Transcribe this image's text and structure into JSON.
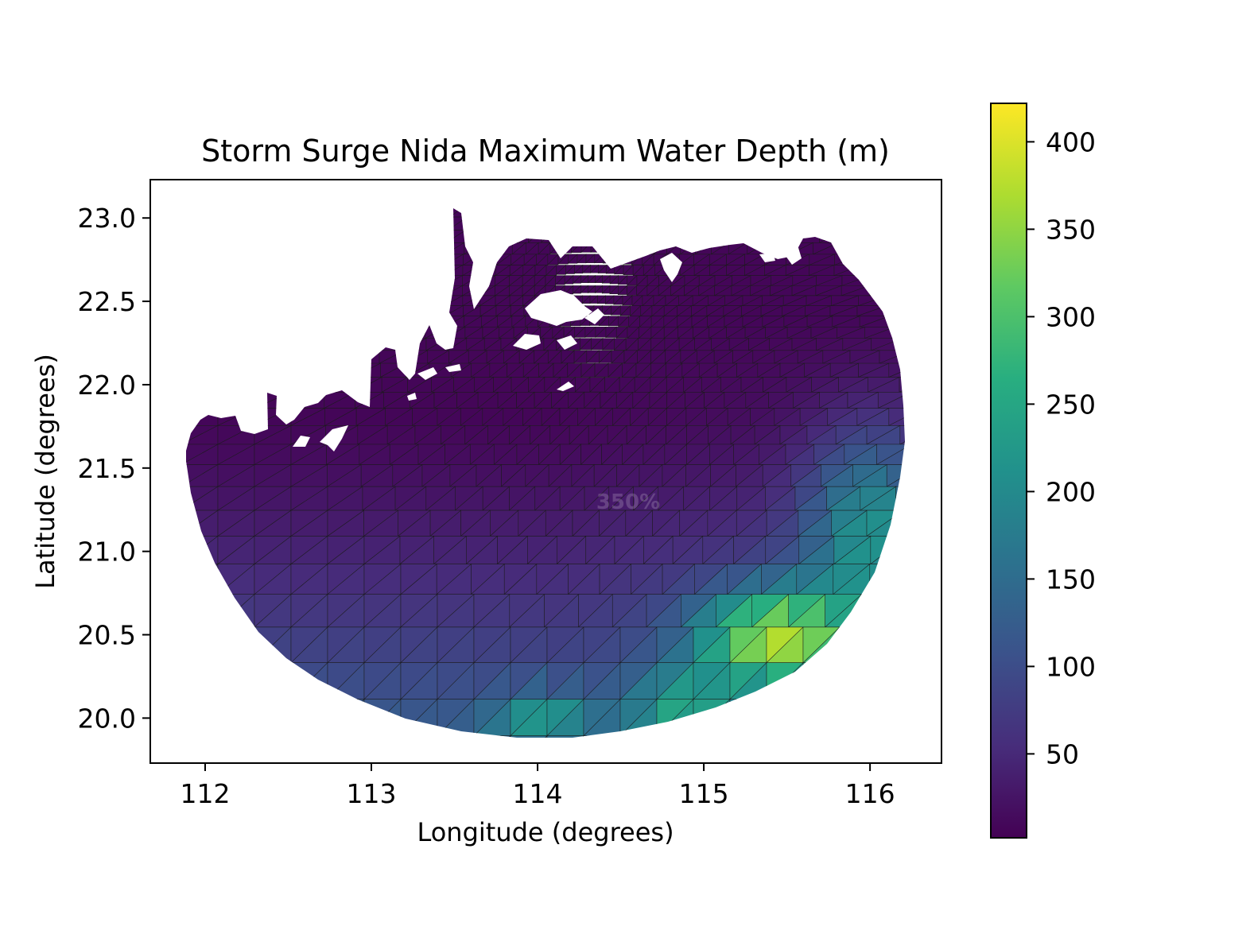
{
  "chart_data": {
    "type": "heatmap",
    "title": "Storm Surge Nida Maximum Water Depth (m)",
    "xlabel": "Longitude (degrees)",
    "ylabel": "Latitude (degrees)",
    "xlim": [
      111.67,
      116.43
    ],
    "ylim": [
      19.73,
      23.23
    ],
    "x_ticks": [
      112,
      113,
      114,
      115,
      116
    ],
    "y_ticks": [
      20.0,
      20.5,
      21.0,
      21.5,
      22.0,
      22.5,
      23.0
    ],
    "x_tick_labels": [
      "112",
      "113",
      "114",
      "115",
      "116"
    ],
    "y_tick_labels": [
      "20.0",
      "20.5",
      "21.0",
      "21.5",
      "22.0",
      "22.5",
      "23.0"
    ],
    "colorbar": {
      "colormap": "viridis",
      "range": [
        2,
        422
      ],
      "ticks": [
        50,
        100,
        150,
        200,
        250,
        300,
        350,
        400
      ],
      "tick_labels": [
        "50",
        "100",
        "150",
        "200",
        "250",
        "300",
        "350",
        "400"
      ]
    },
    "overlay_text": "350%",
    "grid": false
  }
}
